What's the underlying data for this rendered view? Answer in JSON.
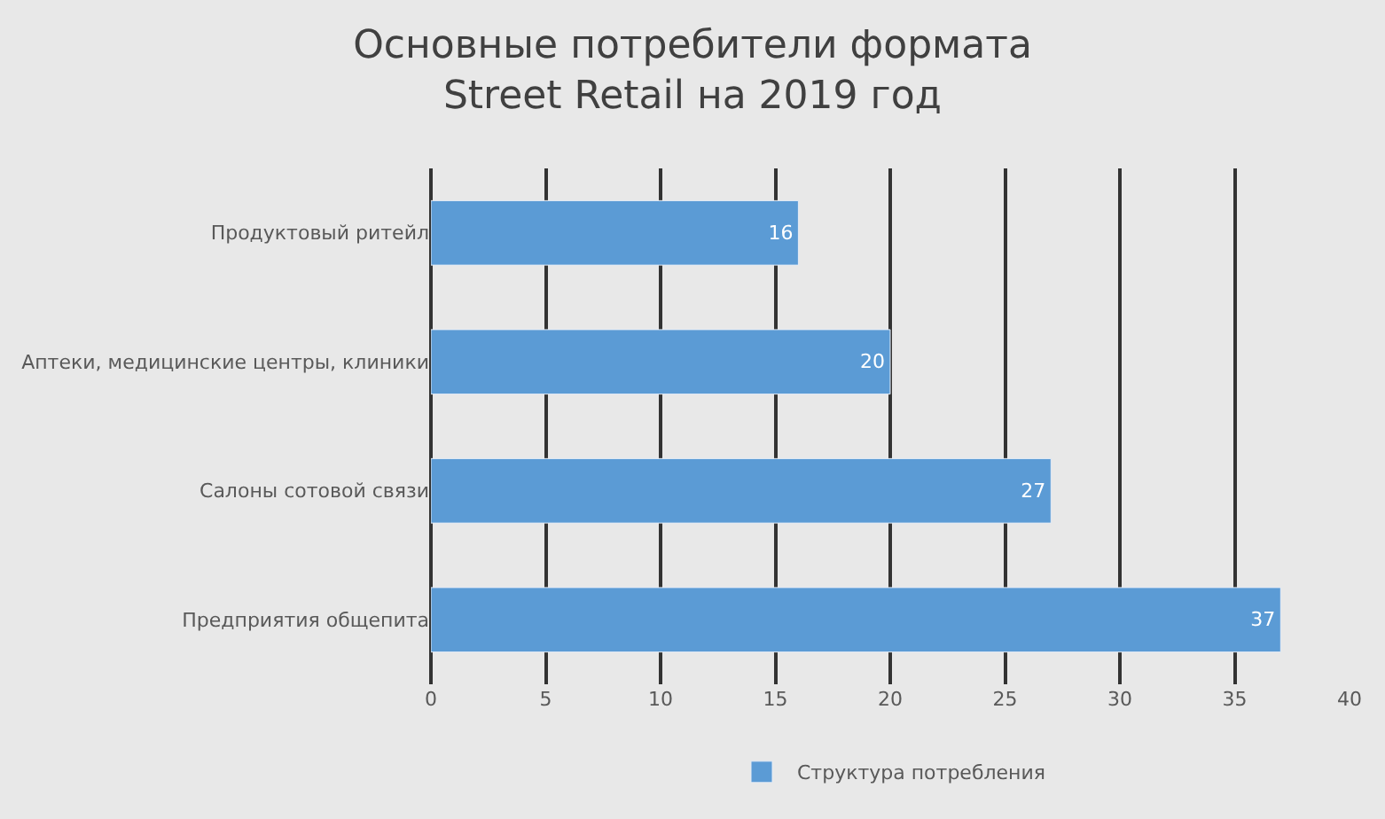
{
  "chart_data": {
    "type": "bar",
    "orientation": "horizontal",
    "title": "Основные потребители формата Street Retail на 2019 год",
    "categories": [
      "Продуктовый ритейл",
      "Аптеки, медицинские центры, клиники",
      "Салоны сотовой связи",
      "Предприятия общепита"
    ],
    "series": [
      {
        "name": "Структура потребления",
        "color": "#5b9bd5",
        "values": [
          16,
          20,
          27,
          37
        ]
      }
    ],
    "xlim": [
      0,
      40
    ],
    "xticks": [
      0,
      5,
      10,
      15,
      20,
      25,
      30,
      35,
      40
    ],
    "grid": "x",
    "legend": "bottom",
    "data_labels": true
  }
}
